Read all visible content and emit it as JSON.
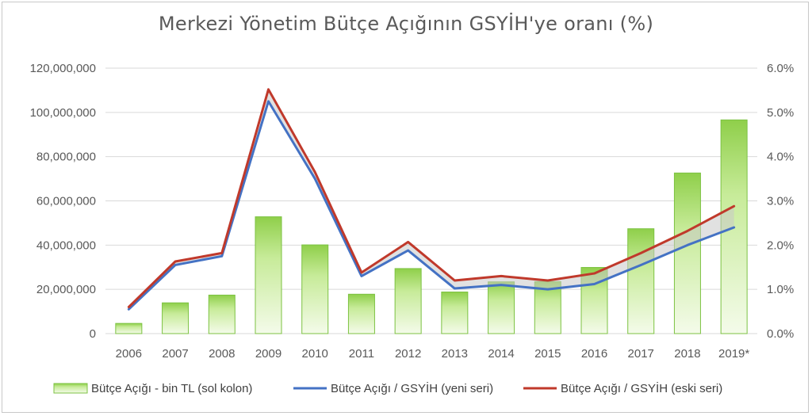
{
  "chart_data": {
    "type": "bar",
    "title": "Merkezi Yönetim Bütçe Açığının GSYİH'ye oranı (%)",
    "categories": [
      "2006",
      "2007",
      "2008",
      "2009",
      "2010",
      "2011",
      "2012",
      "2013",
      "2014",
      "2015",
      "2016",
      "2017",
      "2018",
      "2019*"
    ],
    "y_left": {
      "range": [
        0,
        120000000
      ],
      "ticks": [
        0,
        20000000,
        40000000,
        60000000,
        80000000,
        100000000,
        120000000
      ],
      "tick_labels": [
        "0",
        "20,000,000",
        "40,000,000",
        "60,000,000",
        "80,000,000",
        "100,000,000",
        "120,000,000"
      ]
    },
    "y_right": {
      "range": [
        0,
        6
      ],
      "ticks": [
        0,
        1,
        2,
        3,
        4,
        5,
        6
      ],
      "tick_labels": [
        "0.0%",
        "1.0%",
        "2.0%",
        "3.0%",
        "4.0%",
        "5.0%",
        "6.0%"
      ]
    },
    "series": [
      {
        "name": "Bütçe Açığı - bin TL (sol kolon)",
        "kind": "bar",
        "axis": "left",
        "color": "#92d050",
        "values": [
          4600000,
          13900000,
          17400000,
          52800000,
          40100000,
          17800000,
          29400000,
          18800000,
          23400000,
          23500000,
          29900000,
          47400000,
          72600000,
          96600000
        ]
      },
      {
        "name": "Bütçe Açığı / GSYİH (yeni seri)",
        "kind": "line",
        "axis": "right",
        "color": "#4472c4",
        "values": [
          0.55,
          1.55,
          1.75,
          5.25,
          3.5,
          1.3,
          1.88,
          1.02,
          1.1,
          1.0,
          1.12,
          1.55,
          2.0,
          2.4
        ]
      },
      {
        "name": "Bütçe Açığı / GSYİH (eski seri)",
        "kind": "line",
        "axis": "right",
        "color": "#c0392b",
        "values": [
          0.6,
          1.63,
          1.82,
          5.52,
          3.65,
          1.38,
          2.07,
          1.2,
          1.3,
          1.2,
          1.36,
          1.82,
          2.32,
          2.88
        ]
      }
    ],
    "grid": "horizontal",
    "legend_position": "bottom"
  }
}
